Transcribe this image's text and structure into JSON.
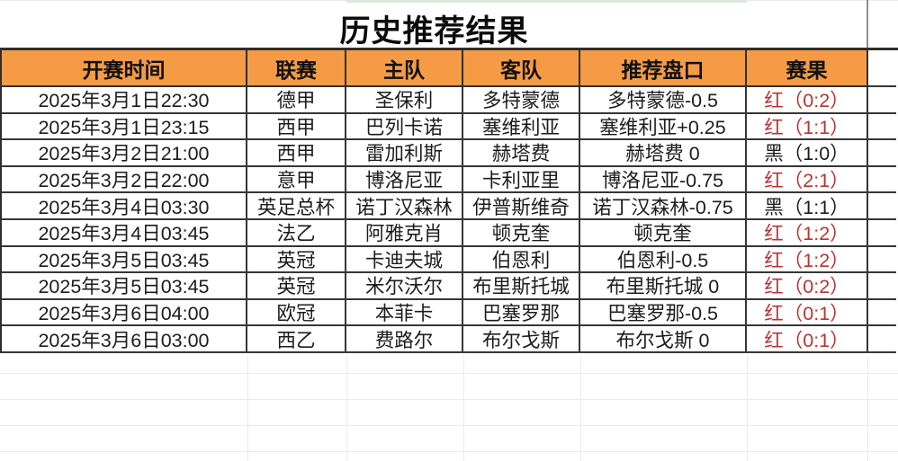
{
  "title": "历史推荐结果",
  "table": {
    "headers": [
      "开赛时间",
      "联赛",
      "主队",
      "客队",
      "推荐盘口",
      "赛果"
    ],
    "rows": [
      {
        "time": "2025年3月1日22:30",
        "league": "德甲",
        "home": "圣保利",
        "away": "多特蒙德",
        "handicap": "多特蒙德-0.5",
        "result": "红（0:2）",
        "result_color": "red"
      },
      {
        "time": "2025年3月1日23:15",
        "league": "西甲",
        "home": "巴列卡诺",
        "away": "塞维利亚",
        "handicap": "塞维利亚+0.25",
        "result": "红（1:1）",
        "result_color": "red"
      },
      {
        "time": "2025年3月2日21:00",
        "league": "西甲",
        "home": "雷加利斯",
        "away": "赫塔费",
        "handicap": "赫塔费 0",
        "result": "黑（1:0）",
        "result_color": "black"
      },
      {
        "time": "2025年3月2日22:00",
        "league": "意甲",
        "home": "博洛尼亚",
        "away": "卡利亚里",
        "handicap": "博洛尼亚-0.75",
        "result": "红（2:1）",
        "result_color": "red"
      },
      {
        "time": "2025年3月4日03:30",
        "league": "英足总杯",
        "home": "诺丁汉森林",
        "away": "伊普斯维奇",
        "handicap": "诺丁汉森林-0.75",
        "result": "黑（1:1）",
        "result_color": "black"
      },
      {
        "time": "2025年3月4日03:45",
        "league": "法乙",
        "home": "阿雅克肖",
        "away": "顿克奎",
        "handicap": "顿克奎",
        "result": "红（1:2）",
        "result_color": "red"
      },
      {
        "time": "2025年3月5日03:45",
        "league": "英冠",
        "home": "卡迪夫城",
        "away": "伯恩利",
        "handicap": "伯恩利-0.5",
        "result": "红（1:2）",
        "result_color": "red"
      },
      {
        "time": "2025年3月5日03:45",
        "league": "英冠",
        "home": "米尔沃尔",
        "away": "布里斯托城",
        "handicap": "布里斯托城 0",
        "result": "红（0:2）",
        "result_color": "red"
      },
      {
        "time": "2025年3月6日04:00",
        "league": "欧冠",
        "home": "本菲卡",
        "away": "巴塞罗那",
        "handicap": "巴塞罗那-0.5",
        "result": "红（0:1）",
        "result_color": "red"
      },
      {
        "time": "2025年3月6日03:00",
        "league": "西乙",
        "home": "费路尔",
        "away": "布尔戈斯",
        "handicap": "布尔戈斯 0",
        "result": "红（0:1）",
        "result_color": "red"
      }
    ]
  },
  "colors": {
    "header_bg": "#f59b45",
    "win_red": "#b63530",
    "loss_black": "#1c1c1c",
    "border_dark": "#2f2f2f",
    "ghost_gridline": "#ece8f0"
  }
}
